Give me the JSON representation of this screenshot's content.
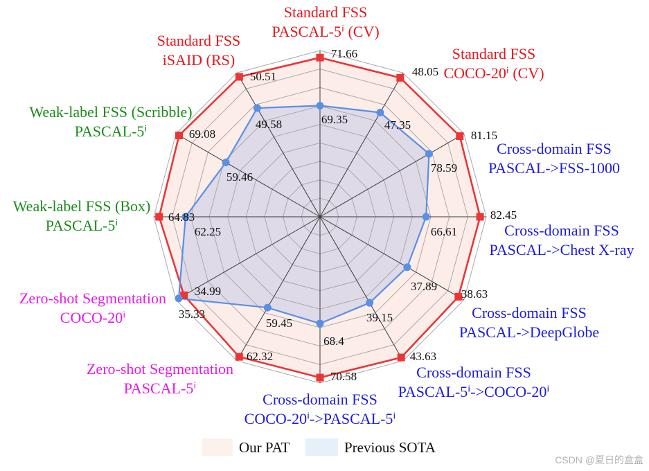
{
  "chart_data": {
    "type": "radar",
    "axes": [
      {
        "label": [
          "Standard FSS",
          "PASCAL-5ⁱ (CV)"
        ],
        "label_color": "#e8161b",
        "range": [
          64,
          72
        ]
      },
      {
        "label": [
          "Standard FSS",
          "COCO-20ⁱ (CV)"
        ],
        "label_color": "#e8161b",
        "range": [
          45.25,
          48.15
        ]
      },
      {
        "label": [
          "Cross-domain FSS",
          "PASCAL->FSS-1000"
        ],
        "label_color": "#1b1be0",
        "range": [
          69.5,
          81.5
        ]
      },
      {
        "label": [
          "Cross-domain FSS",
          "PASCAL->Chest X-ray"
        ],
        "label_color": "#1b1be0",
        "range": [
          35.5,
          84.25
        ]
      },
      {
        "label": [
          "Cross-domain FSS",
          "PASCAL->DeepGlobe"
        ],
        "label_color": "#1b1be0",
        "range": [
          36.63,
          38.71
        ]
      },
      {
        "label": [
          "Cross-domain FSS",
          "PASCAL-5ⁱ->COCO-20ⁱ"
        ],
        "label_color": "#1b1be0",
        "range": [
          32.1,
          43.9
        ]
      },
      {
        "label": [
          "Cross-domain FSS",
          "COCO-20ⁱ->PASCAL-5ⁱ"
        ],
        "label_color": "#1b1be0",
        "range": [
          64.1,
          70.8
        ]
      },
      {
        "label": [
          "Zero-shot Segmentation",
          "PASCAL-5ⁱ"
        ],
        "label_color": "#e619e6",
        "range": [
          54.15,
          62.55
        ]
      },
      {
        "label": [
          "Zero-shot Segmentation",
          "COCO-20ⁱ"
        ],
        "label_color": "#e619e6",
        "range": [
          26.3,
          35.5
        ]
      },
      {
        "label": [
          "Weak-label FSS (Box)",
          "PASCAL-5ⁱ"
        ],
        "label_color": "#1a8c1a",
        "range": [
          49.15,
          65.35
        ]
      },
      {
        "label": [
          "Weak-label FSS (Scribble)",
          "PASCAL-5ⁱ"
        ],
        "label_color": "#1a8c1a",
        "range": [
          40.1,
          69.7
        ]
      },
      {
        "label": [
          "Standard FSS",
          "iSAID (RS)"
        ],
        "label_color": "#e8161b",
        "range": [
          46.34,
          50.63
        ]
      }
    ],
    "series": [
      {
        "name": "Our PAT",
        "values": [
          71.66,
          48.05,
          81.15,
          82.45,
          38.63,
          43.63,
          70.58,
          62.32,
          34.99,
          64.83,
          69.08,
          50.51
        ],
        "line_color": "#ec3535",
        "fill_color": "#f4b8a8",
        "legend_color": "#fdf1ed"
      },
      {
        "name": "Previous SOTA",
        "values": [
          69.35,
          47.35,
          78.59,
          66.61,
          37.89,
          39.15,
          68.4,
          59.45,
          35.33,
          62.25,
          59.46,
          49.58
        ],
        "line_color": "#5b8fe4",
        "fill_color": "#6f8fe0",
        "legend_color": "#e6f0fb"
      }
    ],
    "grid": true,
    "legend": {
      "position": "bottom"
    }
  },
  "watermark": "CSDN @夏日的盒盒"
}
